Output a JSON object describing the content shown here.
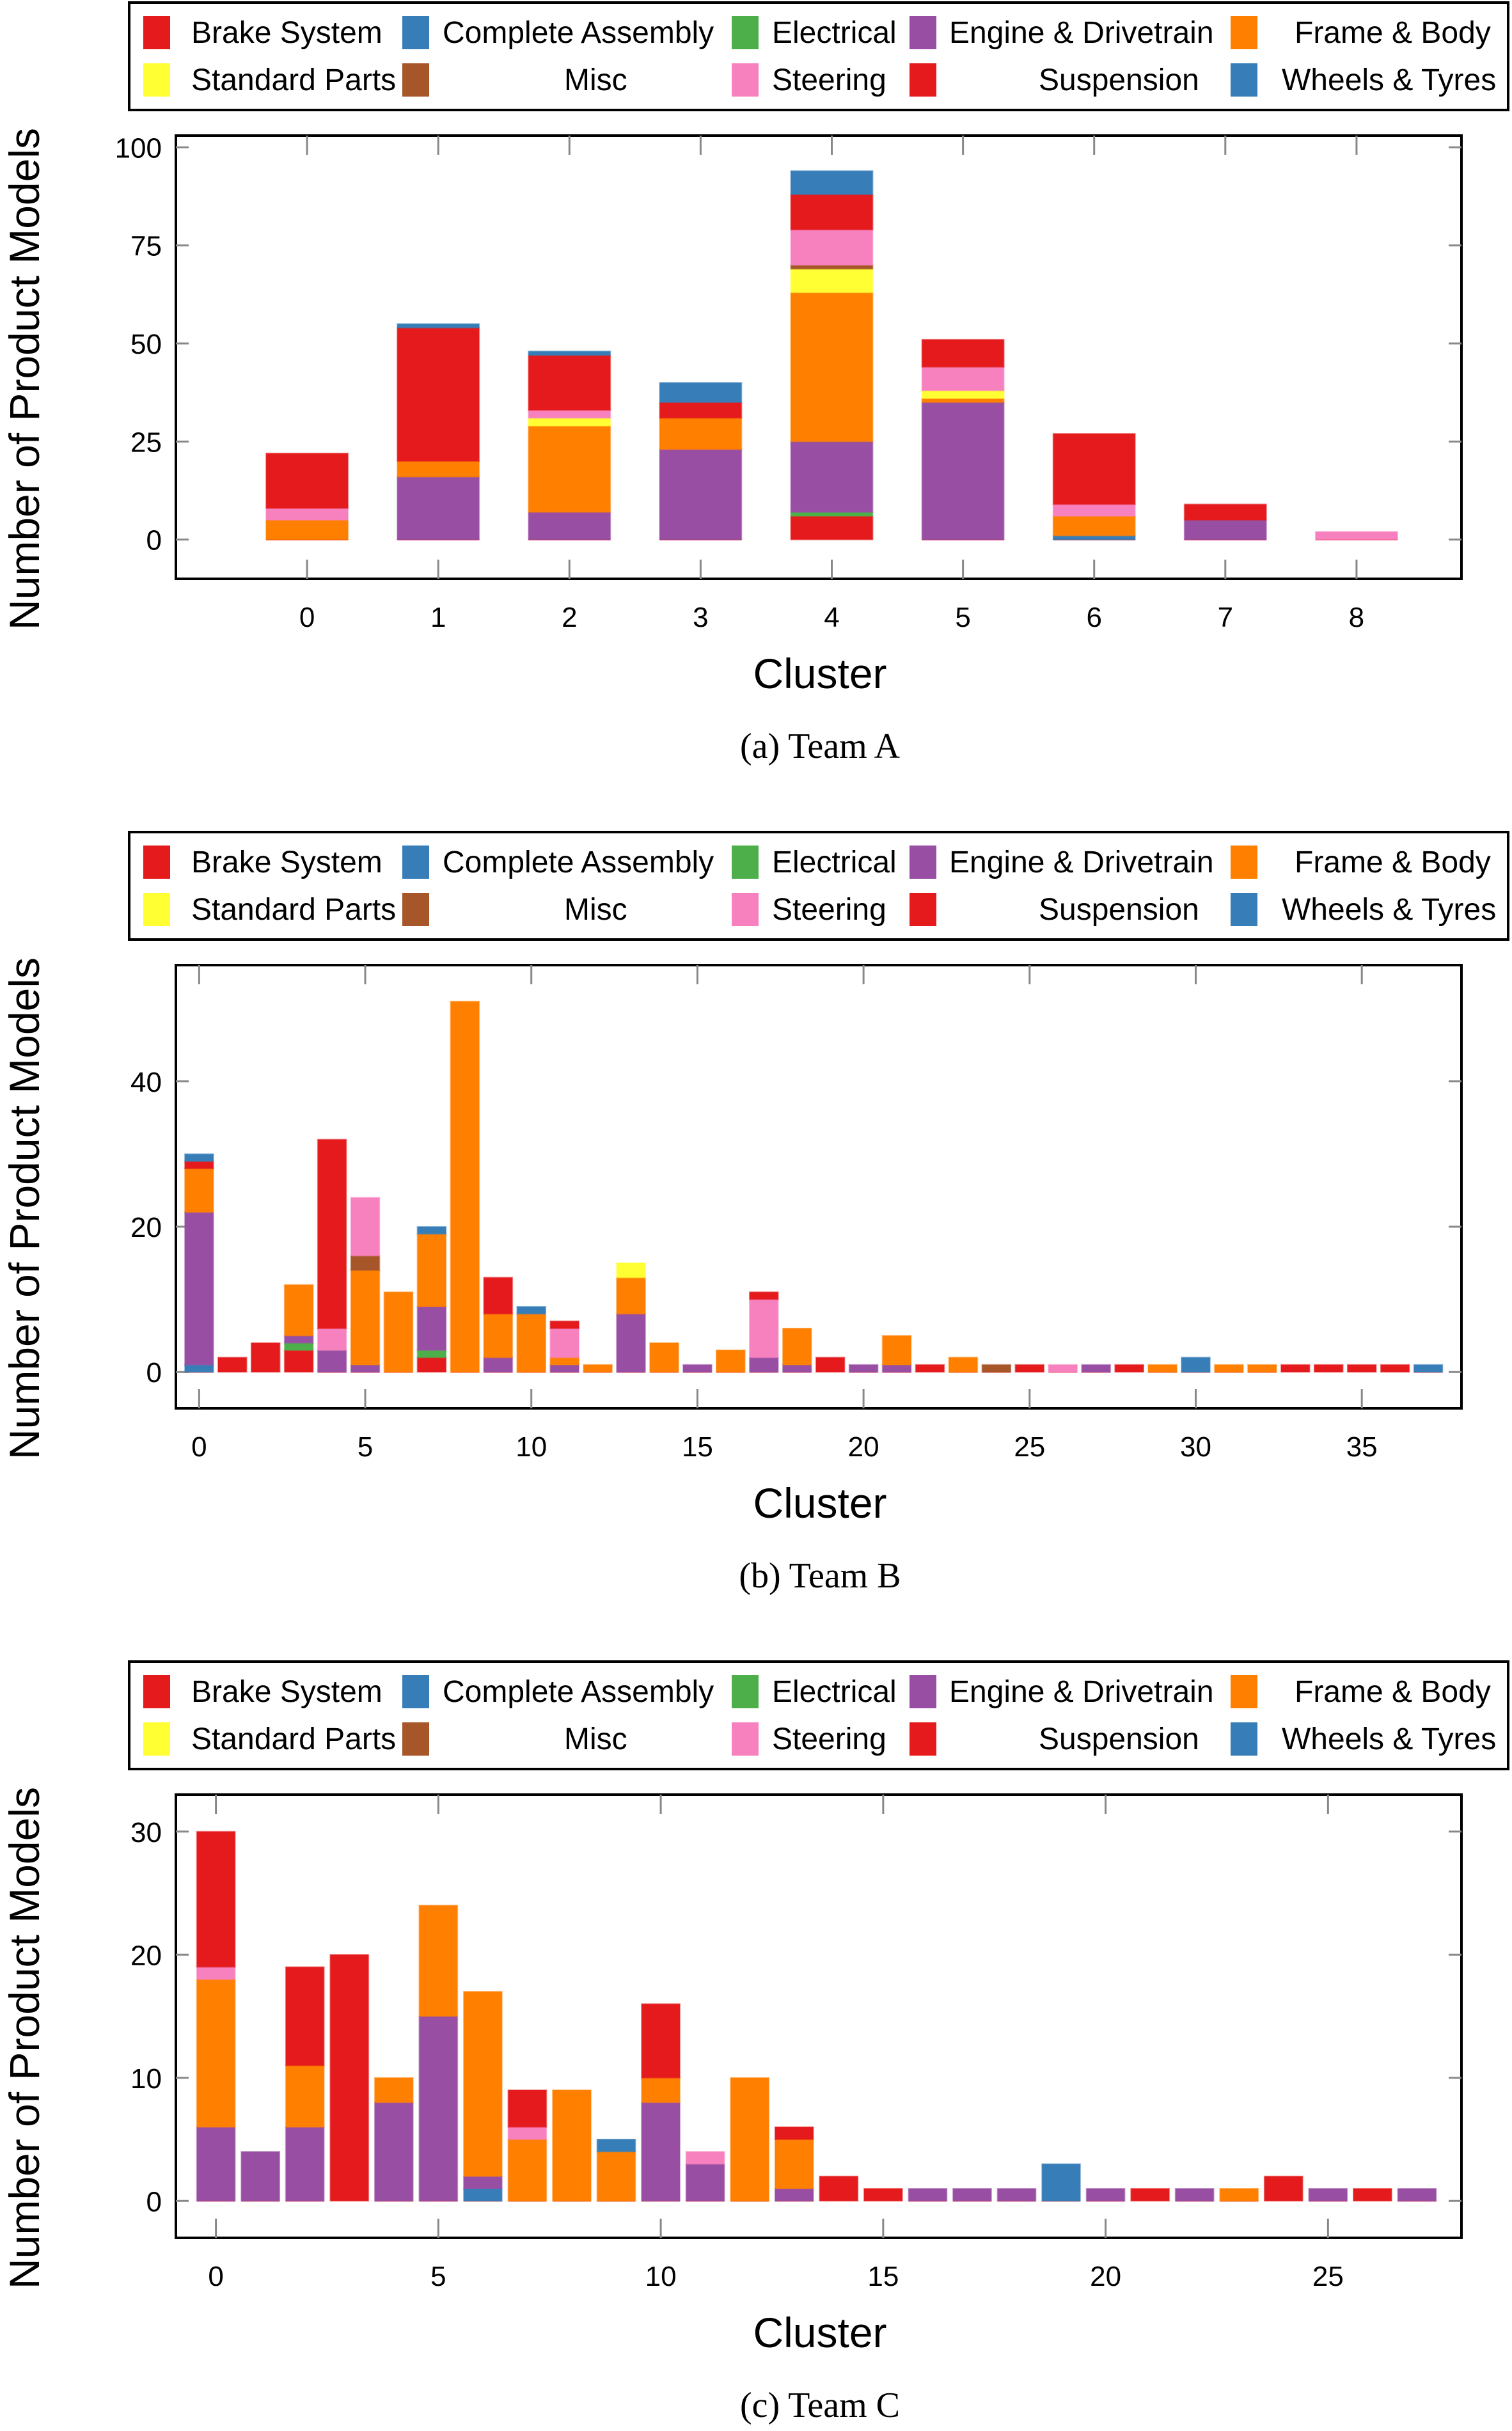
{
  "categories_order": [
    "Brake System",
    "Complete Assembly",
    "Electrical",
    "Engine & Drivetrain",
    "Frame & Body",
    "Standard Parts",
    "Misc",
    "Steering",
    "Suspension",
    "Wheels & Tyres"
  ],
  "colors": {
    "Brake System": "#e41a1c",
    "Complete Assembly": "#377eb8",
    "Electrical": "#4daf4a",
    "Engine & Drivetrain": "#984ea3",
    "Frame & Body": "#ff7f00",
    "Standard Parts": "#ffff33",
    "Misc": "#a65628",
    "Steering": "#f781bf",
    "Suspension": "#e41a1c",
    "Wheels & Tyres": "#377eb8"
  },
  "legend": [
    {
      "label": "Brake System",
      "color": "#e41a1c"
    },
    {
      "label": "Complete Assembly",
      "color": "#377eb8"
    },
    {
      "label": "Electrical",
      "color": "#4daf4a"
    },
    {
      "label": "Engine & Drivetrain",
      "color": "#984ea3"
    },
    {
      "label": "Frame & Body",
      "color": "#ff7f00"
    },
    {
      "label": "Standard Parts",
      "color": "#ffff33"
    },
    {
      "label": "Misc",
      "color": "#a65628"
    },
    {
      "label": "Steering",
      "color": "#f781bf"
    },
    {
      "label": "Suspension",
      "color": "#e41a1c"
    },
    {
      "label": "Wheels & Tyres",
      "color": "#377eb8"
    }
  ],
  "chart_data": [
    {
      "type": "bar",
      "stacked": true,
      "title": "",
      "caption": "(a) Team A",
      "xlabel": "Cluster",
      "ylabel": "Number of Product Models",
      "ylim": [
        -10,
        103
      ],
      "xlim": [
        -1,
        8.8
      ],
      "yticks": [
        0,
        25,
        50,
        75,
        100
      ],
      "xticks": [
        0,
        1,
        2,
        3,
        4,
        5,
        6,
        7,
        8
      ],
      "legend_position": "top",
      "grid": false,
      "categories": [
        0,
        1,
        2,
        3,
        4,
        5,
        6,
        7,
        8
      ],
      "series": [
        {
          "name": "Brake System",
          "values": [
            0,
            0,
            0,
            0,
            6,
            0,
            0,
            0,
            0
          ]
        },
        {
          "name": "Complete Assembly",
          "values": [
            0,
            0,
            0,
            0,
            0,
            0,
            1,
            0,
            0
          ]
        },
        {
          "name": "Electrical",
          "values": [
            0,
            0,
            0,
            0,
            1,
            0,
            0,
            0,
            0
          ]
        },
        {
          "name": "Engine & Drivetrain",
          "values": [
            0,
            16,
            7,
            23,
            18,
            35,
            0,
            5,
            0
          ]
        },
        {
          "name": "Frame & Body",
          "values": [
            5,
            4,
            22,
            8,
            38,
            1,
            5,
            0,
            0
          ]
        },
        {
          "name": "Standard Parts",
          "values": [
            0,
            0,
            2,
            0,
            6,
            2,
            0,
            0,
            0
          ]
        },
        {
          "name": "Misc",
          "values": [
            0,
            0,
            0,
            0,
            1,
            0,
            0,
            0,
            0
          ]
        },
        {
          "name": "Steering",
          "values": [
            3,
            0,
            2,
            0,
            9,
            6,
            3,
            0,
            2
          ]
        },
        {
          "name": "Suspension",
          "values": [
            14,
            34,
            14,
            4,
            9,
            7,
            18,
            4,
            0
          ]
        },
        {
          "name": "Wheels & Tyres",
          "values": [
            0,
            1,
            1,
            5,
            6,
            0,
            0,
            0,
            0
          ]
        }
      ]
    },
    {
      "type": "bar",
      "stacked": true,
      "title": "",
      "caption": "(b) Team B",
      "xlabel": "Cluster",
      "ylabel": "Number of Product Models",
      "ylim": [
        -5,
        56
      ],
      "xlim": [
        -0.7,
        38
      ],
      "yticks": [
        0,
        20,
        40
      ],
      "xticks": [
        0,
        5,
        10,
        15,
        20,
        25,
        30,
        35
      ],
      "legend_position": "top",
      "grid": false,
      "categories": [
        0,
        1,
        2,
        3,
        4,
        5,
        6,
        7,
        8,
        9,
        10,
        11,
        12,
        13,
        14,
        15,
        16,
        17,
        18,
        19,
        20,
        21,
        22,
        23,
        24,
        25,
        26,
        27,
        28,
        29,
        30,
        31,
        32,
        33,
        34,
        35,
        36,
        37
      ],
      "series": [
        {
          "name": "Brake System",
          "values": [
            0,
            2,
            4,
            3,
            0,
            0,
            0,
            2,
            0,
            0,
            0,
            0,
            0,
            0,
            0,
            0,
            0,
            0,
            0,
            2,
            0,
            0,
            1,
            0,
            0,
            1,
            0,
            0,
            1,
            0,
            0,
            0,
            0,
            1,
            1,
            1,
            1,
            0
          ]
        },
        {
          "name": "Complete Assembly",
          "values": [
            1,
            0,
            0,
            0,
            0,
            0,
            0,
            0,
            0,
            0,
            0,
            0,
            0,
            0,
            0,
            0,
            0,
            0,
            0,
            0,
            0,
            0,
            0,
            0,
            0,
            0,
            0,
            0,
            0,
            0,
            0,
            0,
            0,
            0,
            0,
            0,
            0,
            0
          ]
        },
        {
          "name": "Electrical",
          "values": [
            0,
            0,
            0,
            1,
            0,
            0,
            0,
            1,
            0,
            0,
            0,
            0,
            0,
            0,
            0,
            0,
            0,
            0,
            0,
            0,
            0,
            0,
            0,
            0,
            0,
            0,
            0,
            0,
            0,
            0,
            0,
            0,
            0,
            0,
            0,
            0,
            0,
            0
          ]
        },
        {
          "name": "Engine & Drivetrain",
          "values": [
            21,
            0,
            0,
            1,
            3,
            1,
            0,
            6,
            0,
            2,
            0,
            1,
            0,
            8,
            0,
            1,
            0,
            2,
            1,
            0,
            1,
            1,
            0,
            0,
            0,
            0,
            0,
            1,
            0,
            0,
            0,
            0,
            0,
            0,
            0,
            0,
            0,
            0
          ]
        },
        {
          "name": "Frame & Body",
          "values": [
            6,
            0,
            0,
            7,
            0,
            13,
            11,
            10,
            51,
            6,
            8,
            1,
            1,
            5,
            4,
            0,
            3,
            0,
            5,
            0,
            0,
            4,
            0,
            2,
            0,
            0,
            0,
            0,
            0,
            1,
            0,
            1,
            1,
            0,
            0,
            0,
            0,
            0
          ]
        },
        {
          "name": "Standard Parts",
          "values": [
            0,
            0,
            0,
            0,
            0,
            0,
            0,
            0,
            0,
            0,
            0,
            0,
            0,
            2,
            0,
            0,
            0,
            0,
            0,
            0,
            0,
            0,
            0,
            0,
            0,
            0,
            0,
            0,
            0,
            0,
            0,
            0,
            0,
            0,
            0,
            0,
            0,
            0
          ]
        },
        {
          "name": "Misc",
          "values": [
            0,
            0,
            0,
            0,
            0,
            2,
            0,
            0,
            0,
            0,
            0,
            0,
            0,
            0,
            0,
            0,
            0,
            0,
            0,
            0,
            0,
            0,
            0,
            0,
            1,
            0,
            0,
            0,
            0,
            0,
            0,
            0,
            0,
            0,
            0,
            0,
            0,
            0
          ]
        },
        {
          "name": "Steering",
          "values": [
            0,
            0,
            0,
            0,
            3,
            8,
            0,
            0,
            0,
            0,
            0,
            4,
            0,
            0,
            0,
            0,
            0,
            8,
            0,
            0,
            0,
            0,
            0,
            0,
            0,
            0,
            1,
            0,
            0,
            0,
            0,
            0,
            0,
            0,
            0,
            0,
            0,
            0
          ]
        },
        {
          "name": "Suspension",
          "values": [
            1,
            0,
            0,
            0,
            26,
            0,
            0,
            0,
            0,
            5,
            0,
            1,
            0,
            0,
            0,
            0,
            0,
            1,
            0,
            0,
            0,
            0,
            0,
            0,
            0,
            0,
            0,
            0,
            0,
            0,
            0,
            0,
            0,
            0,
            0,
            0,
            0,
            0
          ]
        },
        {
          "name": "Wheels & Tyres",
          "values": [
            1,
            0,
            0,
            0,
            0,
            0,
            0,
            1,
            0,
            0,
            1,
            0,
            0,
            0,
            0,
            0,
            0,
            0,
            0,
            0,
            0,
            0,
            0,
            0,
            0,
            0,
            0,
            0,
            0,
            0,
            2,
            0,
            0,
            0,
            0,
            0,
            0,
            1
          ]
        }
      ]
    },
    {
      "type": "bar",
      "stacked": true,
      "title": "",
      "caption": "(c) Team C",
      "xlabel": "Cluster",
      "ylabel": "Number of Product Models",
      "ylim": [
        -3,
        33
      ],
      "xlim": [
        -0.9,
        28
      ],
      "yticks": [
        0,
        10,
        20,
        30
      ],
      "xticks": [
        0,
        5,
        10,
        15,
        20,
        25
      ],
      "legend_position": "top",
      "grid": false,
      "categories": [
        0,
        1,
        2,
        3,
        4,
        5,
        6,
        7,
        8,
        9,
        10,
        11,
        12,
        13,
        14,
        15,
        16,
        17,
        18,
        19,
        20,
        21,
        22,
        23,
        24,
        25,
        26,
        27
      ],
      "series": [
        {
          "name": "Brake System",
          "values": [
            0,
            0,
            0,
            20,
            0,
            0,
            0,
            0,
            0,
            0,
            0,
            0,
            0,
            0,
            2,
            1,
            0,
            0,
            0,
            0,
            0,
            1,
            0,
            0,
            2,
            0,
            1,
            0
          ]
        },
        {
          "name": "Complete Assembly",
          "values": [
            0,
            0,
            0,
            0,
            0,
            0,
            1,
            0,
            0,
            0,
            0,
            0,
            0,
            0,
            0,
            0,
            0,
            0,
            0,
            0,
            0,
            0,
            0,
            0,
            0,
            0,
            0,
            0
          ]
        },
        {
          "name": "Electrical",
          "values": [
            0,
            0,
            0,
            0,
            0,
            0,
            0,
            0,
            0,
            0,
            0,
            0,
            0,
            0,
            0,
            0,
            0,
            0,
            0,
            0,
            0,
            0,
            0,
            0,
            0,
            0,
            0,
            0
          ]
        },
        {
          "name": "Engine & Drivetrain",
          "values": [
            6,
            4,
            6,
            0,
            8,
            15,
            1,
            0,
            0,
            0,
            8,
            3,
            0,
            1,
            0,
            0,
            1,
            1,
            1,
            0,
            1,
            0,
            1,
            0,
            0,
            1,
            0,
            1
          ]
        },
        {
          "name": "Frame & Body",
          "values": [
            12,
            0,
            5,
            0,
            2,
            9,
            15,
            5,
            9,
            4,
            2,
            0,
            10,
            4,
            0,
            0,
            0,
            0,
            0,
            0,
            0,
            0,
            0,
            1,
            0,
            0,
            0,
            0
          ]
        },
        {
          "name": "Standard Parts",
          "values": [
            0,
            0,
            0,
            0,
            0,
            0,
            0,
            0,
            0,
            0,
            0,
            0,
            0,
            0,
            0,
            0,
            0,
            0,
            0,
            0,
            0,
            0,
            0,
            0,
            0,
            0,
            0,
            0
          ]
        },
        {
          "name": "Misc",
          "values": [
            0,
            0,
            0,
            0,
            0,
            0,
            0,
            0,
            0,
            0,
            0,
            0,
            0,
            0,
            0,
            0,
            0,
            0,
            0,
            0,
            0,
            0,
            0,
            0,
            0,
            0,
            0,
            0
          ]
        },
        {
          "name": "Steering",
          "values": [
            1,
            0,
            0,
            0,
            0,
            0,
            0,
            1,
            0,
            0,
            0,
            1,
            0,
            0,
            0,
            0,
            0,
            0,
            0,
            0,
            0,
            0,
            0,
            0,
            0,
            0,
            0,
            0
          ]
        },
        {
          "name": "Suspension",
          "values": [
            11,
            0,
            8,
            0,
            0,
            0,
            0,
            3,
            0,
            0,
            6,
            0,
            0,
            1,
            0,
            0,
            0,
            0,
            0,
            0,
            0,
            0,
            0,
            0,
            0,
            0,
            0,
            0
          ]
        },
        {
          "name": "Wheels & Tyres",
          "values": [
            0,
            0,
            0,
            0,
            0,
            0,
            0,
            0,
            0,
            1,
            0,
            0,
            0,
            0,
            0,
            0,
            0,
            0,
            0,
            3,
            0,
            0,
            0,
            0,
            0,
            0,
            0,
            0
          ]
        }
      ]
    }
  ]
}
